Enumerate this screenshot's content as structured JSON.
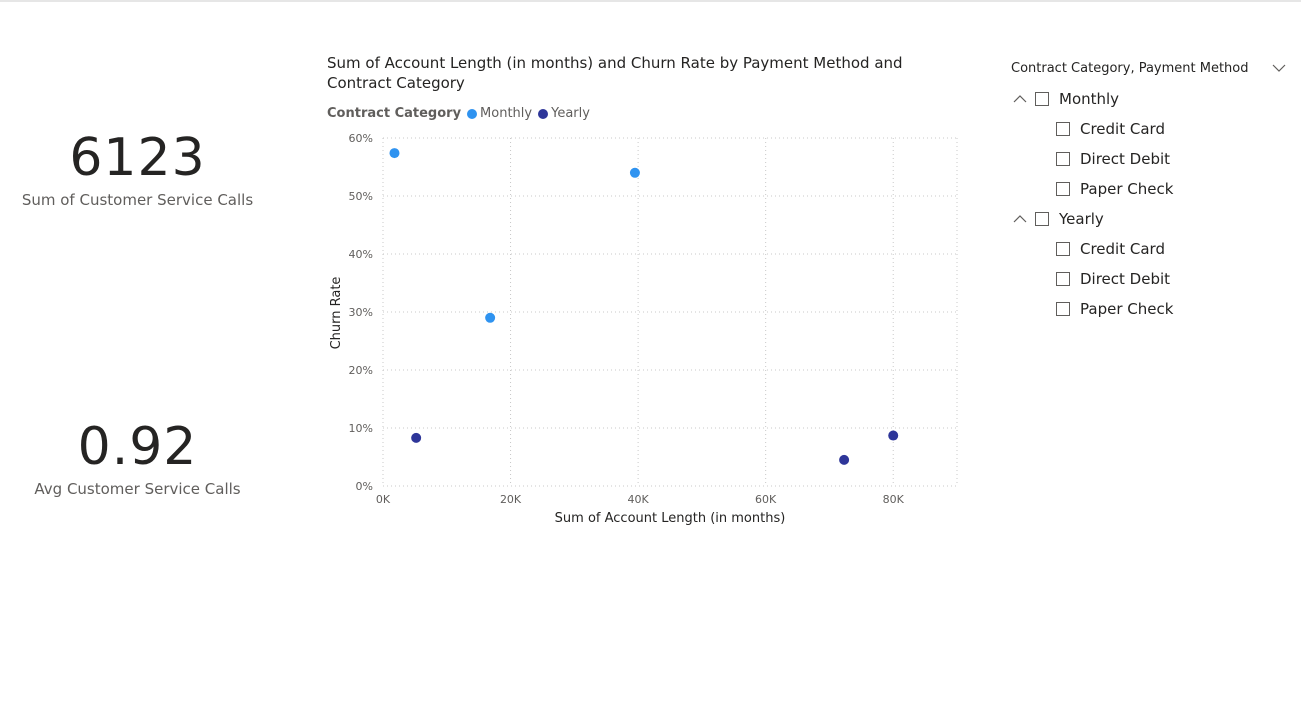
{
  "cards": [
    {
      "value": "6123",
      "label": "Sum of Customer Service Calls"
    },
    {
      "value": "0.92",
      "label": "Avg Customer Service Calls"
    }
  ],
  "colors": {
    "monthly": "#2f93f0",
    "yearly": "#2e3699"
  },
  "chart_data": {
    "type": "scatter",
    "title": "Sum of Account Length (in months) and Churn Rate by Payment Method and Contract Category",
    "xlabel": "Sum of Account Length (in months)",
    "ylabel": "Churn Rate",
    "xlim": [
      0,
      90000
    ],
    "ylim": [
      0,
      0.6
    ],
    "x_ticks": [
      "0K",
      "20K",
      "40K",
      "60K",
      "80K"
    ],
    "y_ticks": [
      "0%",
      "10%",
      "20%",
      "30%",
      "40%",
      "50%",
      "60%"
    ],
    "grid": true,
    "legend": {
      "title": "Contract Category",
      "placement": "top-left",
      "entries": [
        "Monthly",
        "Yearly"
      ]
    },
    "series": [
      {
        "name": "Monthly",
        "points": [
          {
            "x": 1800,
            "y": 0.574
          },
          {
            "x": 16800,
            "y": 0.29
          },
          {
            "x": 39500,
            "y": 0.54
          }
        ]
      },
      {
        "name": "Yearly",
        "points": [
          {
            "x": 5200,
            "y": 0.083
          },
          {
            "x": 72300,
            "y": 0.045
          },
          {
            "x": 80000,
            "y": 0.087
          }
        ]
      }
    ]
  },
  "slicer": {
    "title": "Contract Category, Payment Method",
    "groups": [
      {
        "label": "Monthly",
        "children": [
          "Credit Card",
          "Direct Debit",
          "Paper Check"
        ]
      },
      {
        "label": "Yearly",
        "children": [
          "Credit Card",
          "Direct Debit",
          "Paper Check"
        ]
      }
    ]
  }
}
